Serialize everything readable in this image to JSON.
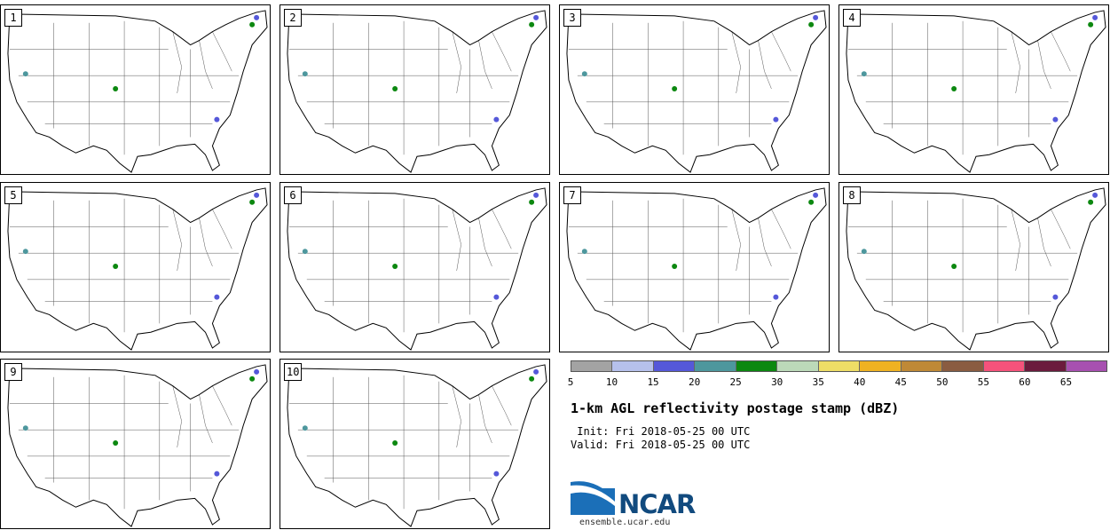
{
  "panels": [
    {
      "number": "1"
    },
    {
      "number": "2"
    },
    {
      "number": "3"
    },
    {
      "number": "4"
    },
    {
      "number": "5"
    },
    {
      "number": "6"
    },
    {
      "number": "7"
    },
    {
      "number": "8"
    },
    {
      "number": "9"
    },
    {
      "number": "10"
    }
  ],
  "legend": {
    "ticks": [
      "5",
      "10",
      "15",
      "20",
      "25",
      "30",
      "35",
      "40",
      "45",
      "50",
      "55",
      "60",
      "65"
    ],
    "colors": [
      "#a3a3a3",
      "#b6c1ec",
      "#5558d9",
      "#4d979d",
      "#0c8810",
      "#bcd9b9",
      "#eedd66",
      "#efb222",
      "#bf8936",
      "#8a5c41",
      "#f5527b",
      "#6b1b3d",
      "#a750b0"
    ]
  },
  "title": "1-km AGL reflectivity postage stamp (dBZ)",
  "init_line": " Init: Fri 2018-05-25 00 UTC",
  "valid_line": "Valid: Fri 2018-05-25 00 UTC",
  "logo": {
    "text": "NCAR",
    "url": "ensemble.ucar.edu"
  }
}
